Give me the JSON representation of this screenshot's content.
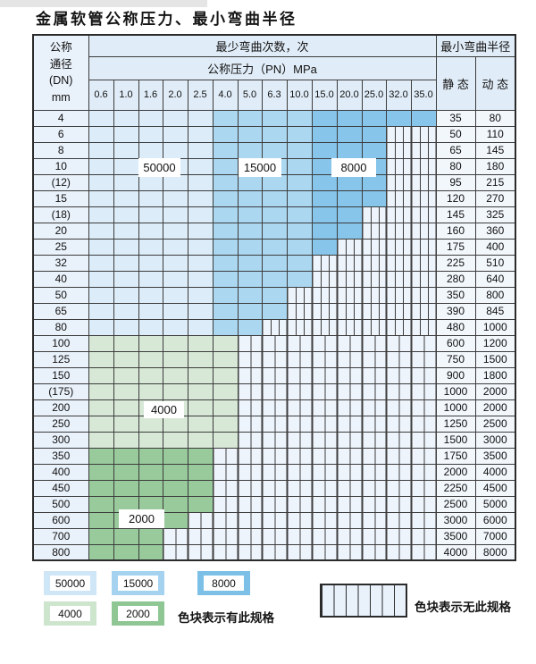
{
  "title": "金属软管公称压力、最小弯曲半径",
  "table": {
    "corner_header": [
      "公称",
      "通径",
      "(DN)",
      "mm"
    ],
    "bend_cycles_header": "最少弯曲次数，次",
    "bend_radius_header": "最小弯曲半径",
    "pressure_header": "公称压力（PN）MPa",
    "static_header": "静 态",
    "dynamic_header": "动 态",
    "pressures": [
      "0.6",
      "1.0",
      "1.6",
      "2.0",
      "2.5",
      "4.0",
      "5.0",
      "6.3",
      "10.0",
      "15.0",
      "20.0",
      "25.0",
      "32.0",
      "35.0"
    ],
    "rows": [
      {
        "dn": "4",
        "type": "blue",
        "colored": 14,
        "through": "35.0",
        "static": "35",
        "dynamic": "80"
      },
      {
        "dn": "6",
        "type": "blue",
        "colored": 12,
        "through": "25.0",
        "static": "50",
        "dynamic": "110"
      },
      {
        "dn": "8",
        "type": "blue",
        "colored": 12,
        "through": "25.0",
        "static": "65",
        "dynamic": "145"
      },
      {
        "dn": "10",
        "type": "blue",
        "colored": 12,
        "through": "25.0",
        "static": "80",
        "dynamic": "180"
      },
      {
        "dn": "(12)",
        "type": "blue",
        "colored": 12,
        "through": "25.0",
        "static": "95",
        "dynamic": "215"
      },
      {
        "dn": "15",
        "type": "blue",
        "colored": 12,
        "through": "25.0",
        "static": "120",
        "dynamic": "270"
      },
      {
        "dn": "(18)",
        "type": "blue",
        "colored": 11,
        "through": "20.0",
        "static": "145",
        "dynamic": "325"
      },
      {
        "dn": "20",
        "type": "blue",
        "colored": 11,
        "through": "20.0",
        "static": "160",
        "dynamic": "360"
      },
      {
        "dn": "25",
        "type": "blue",
        "colored": 10,
        "through": "15.0",
        "static": "175",
        "dynamic": "400"
      },
      {
        "dn": "32",
        "type": "blue",
        "colored": 9,
        "through": "10.0",
        "static": "225",
        "dynamic": "510"
      },
      {
        "dn": "40",
        "type": "blue",
        "colored": 9,
        "through": "10.0",
        "static": "280",
        "dynamic": "640"
      },
      {
        "dn": "50",
        "type": "blue",
        "colored": 8,
        "through": "6.3",
        "static": "350",
        "dynamic": "800"
      },
      {
        "dn": "65",
        "type": "blue",
        "colored": 8,
        "through": "6.3",
        "static": "390",
        "dynamic": "845"
      },
      {
        "dn": "80",
        "type": "blue",
        "colored": 7,
        "through": "5.0",
        "static": "480",
        "dynamic": "1000"
      },
      {
        "dn": "100",
        "type": "green4",
        "colored": 6,
        "through": "4.0",
        "static": "600",
        "dynamic": "1200"
      },
      {
        "dn": "125",
        "type": "green4",
        "colored": 6,
        "through": "4.0",
        "static": "750",
        "dynamic": "1500"
      },
      {
        "dn": "150",
        "type": "green4",
        "colored": 6,
        "through": "4.0",
        "static": "900",
        "dynamic": "1800"
      },
      {
        "dn": "(175)",
        "type": "green4",
        "colored": 6,
        "through": "4.0",
        "static": "1000",
        "dynamic": "2000"
      },
      {
        "dn": "200",
        "type": "green4",
        "colored": 6,
        "through": "4.0",
        "static": "1000",
        "dynamic": "2000"
      },
      {
        "dn": "250",
        "type": "green4",
        "colored": 6,
        "through": "4.0",
        "static": "1250",
        "dynamic": "2500"
      },
      {
        "dn": "300",
        "type": "green4",
        "colored": 6,
        "through": "4.0",
        "static": "1500",
        "dynamic": "3000"
      },
      {
        "dn": "350",
        "type": "green2",
        "colored": 5,
        "through": "2.5",
        "static": "1750",
        "dynamic": "3500"
      },
      {
        "dn": "400",
        "type": "green2",
        "colored": 5,
        "through": "2.5",
        "static": "2000",
        "dynamic": "4000"
      },
      {
        "dn": "450",
        "type": "green2",
        "colored": 5,
        "through": "2.5",
        "static": "2250",
        "dynamic": "4500"
      },
      {
        "dn": "500",
        "type": "green2",
        "colored": 5,
        "through": "2.5",
        "static": "2500",
        "dynamic": "5000"
      },
      {
        "dn": "600",
        "type": "green2",
        "colored": 4,
        "through": "2.0",
        "static": "3000",
        "dynamic": "6000"
      },
      {
        "dn": "700",
        "type": "green2",
        "colored": 3,
        "through": "1.6",
        "static": "3500",
        "dynamic": "7000"
      },
      {
        "dn": "800",
        "type": "green2",
        "colored": 3,
        "through": "1.6",
        "static": "4000",
        "dynamic": "8000"
      }
    ]
  },
  "cycle_zones": {
    "50000": {
      "pressure_columns": [
        "0.6",
        "1.0",
        "1.6",
        "2.0",
        "2.5"
      ],
      "color": "#dcecf8"
    },
    "15000": {
      "pressure_columns": [
        "4.0",
        "5.0",
        "6.3",
        "10.0"
      ],
      "color": "#abd7f1"
    },
    "8000": {
      "pressure_columns": [
        "15.0",
        "20.0",
        "25.0",
        "32.0",
        "35.0"
      ],
      "color": "#87c5ea"
    },
    "4000": {
      "dn_range": "100-300",
      "color": "#d7e8d7"
    },
    "2000": {
      "dn_range": "350-800",
      "color": "#99ca9c"
    }
  },
  "overlays": [
    {
      "value": "50000"
    },
    {
      "value": "15000"
    },
    {
      "value": "8000"
    },
    {
      "value": "4000"
    },
    {
      "value": "2000"
    }
  ],
  "legend": {
    "items": [
      {
        "value": "50000"
      },
      {
        "value": "15000"
      },
      {
        "value": "8000"
      },
      {
        "value": "4000"
      },
      {
        "value": "2000"
      }
    ],
    "has_spec_note": "色块表示有此规格",
    "no_spec_note": "色块表示无此规格"
  },
  "colors": {
    "grid": "#3c3c3c",
    "header_bg": "#e0ecf7",
    "dn_col_bg": "#e9f1fa",
    "value_col_bg": "#f2f7fc",
    "no_spec_bg": "#eef4fb"
  }
}
